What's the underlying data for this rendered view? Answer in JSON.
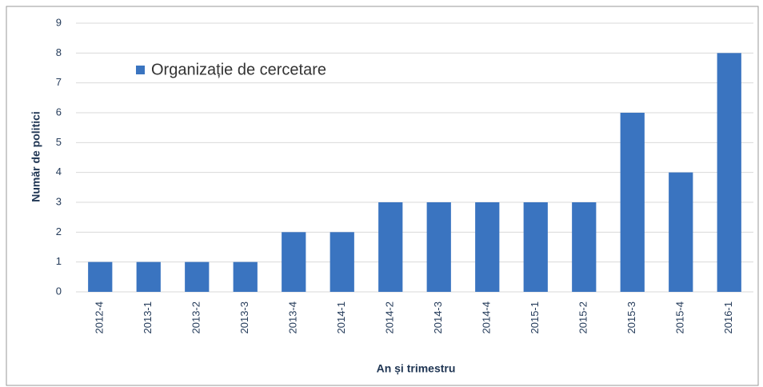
{
  "chart_data": {
    "type": "bar",
    "x_label": "An și trimestru",
    "y_label": "Număr de politici",
    "categories": [
      "2012-4",
      "2013-1",
      "2013-2",
      "2013-3",
      "2013-4",
      "2014-1",
      "2014-2",
      "2014-3",
      "2014-4",
      "2015-1",
      "2015-2",
      "2015-3",
      "2015-4",
      "2016-1"
    ],
    "series": [
      {
        "name": "Organizație de cercetare",
        "color": "#3a74c0",
        "values": [
          1,
          1,
          1,
          1,
          2,
          2,
          3,
          3,
          3,
          3,
          3,
          6,
          4,
          8
        ]
      }
    ],
    "ylim": [
      0,
      9
    ],
    "yticks": [
      0,
      1,
      2,
      3,
      4,
      5,
      6,
      7,
      8,
      9
    ],
    "grid": true,
    "legend": "top-left"
  }
}
